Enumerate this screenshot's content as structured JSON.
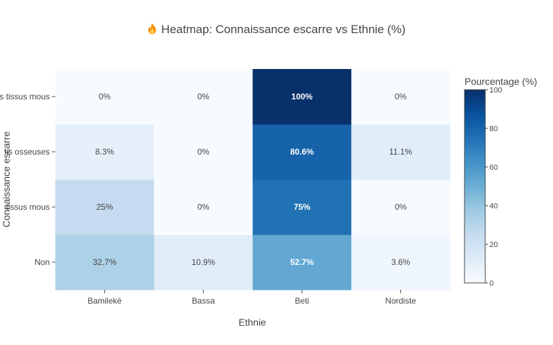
{
  "chart_data": {
    "type": "heatmap",
    "title": "Heatmap: Connaissance escarre vs Ethnie (%)",
    "title_icon": "fire-icon",
    "xlabel": "Ethnie",
    "ylabel": "Connaissance escarre",
    "x": [
      "Bamileké",
      "Bassa",
      "Beti",
      "Nordiste"
    ],
    "y": [
      "Non",
      "Oui tissus mous",
      "Oui osseuses",
      "Oui tissus mous"
    ],
    "y_tick_labels_visible": [
      "Non",
      "tissus mous",
      "lis osseuses",
      "s tissus mous"
    ],
    "values": [
      [
        32.7,
        10.9,
        52.7,
        3.6
      ],
      [
        25,
        0,
        75,
        0
      ],
      [
        8.3,
        0,
        80.6,
        11.1
      ],
      [
        0,
        0,
        100,
        0
      ]
    ],
    "cell_labels": [
      [
        "32.7%",
        "10.9%",
        "52.7%",
        "3.6%"
      ],
      [
        "25%",
        "0%",
        "75%",
        "0%"
      ],
      [
        "8.3%",
        "0%",
        "80.6%",
        "11.1%"
      ],
      [
        "0%",
        "0%",
        "100%",
        "0%"
      ]
    ],
    "colorscale": "Blues",
    "colorscale_colors": [
      "#f7fbff",
      "#deebf7",
      "#c6dbef",
      "#9ecae1",
      "#6baed6",
      "#4292c6",
      "#2171b5",
      "#08519c",
      "#08306b"
    ],
    "colorbar": {
      "title": "Pourcentage (%)",
      "range": [
        0,
        100
      ],
      "ticks": [
        0,
        20,
        40,
        60,
        80,
        100
      ]
    },
    "label_color_dark": "#444444",
    "label_color_light": "#ffffff"
  }
}
